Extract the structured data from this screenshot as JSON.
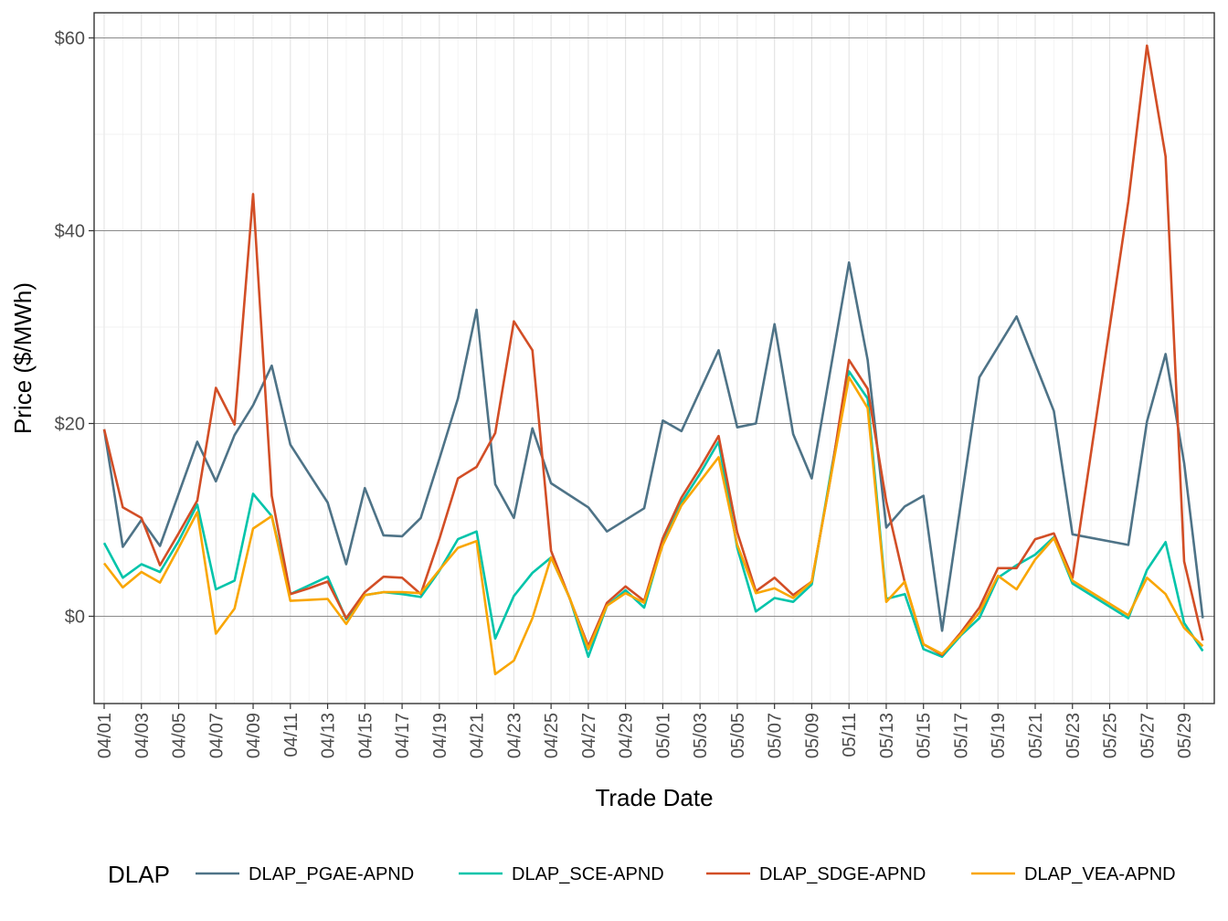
{
  "chart_data": {
    "type": "line",
    "title": "",
    "xlabel": "Trade Date",
    "ylabel": "Price ($/MWh)",
    "ylim": [
      -9,
      62.5
    ],
    "yticks": [
      0,
      20,
      40,
      60
    ],
    "ytick_labels": [
      "$0",
      "$20",
      "$40",
      "$60"
    ],
    "x": [
      "04/01",
      "04/02",
      "04/03",
      "04/04",
      "04/05",
      "04/06",
      "04/07",
      "04/08",
      "04/09",
      "04/10",
      "04/11",
      "04/12",
      "04/13",
      "04/14",
      "04/15",
      "04/16",
      "04/17",
      "04/18",
      "04/19",
      "04/20",
      "04/21",
      "04/22",
      "04/23",
      "04/24",
      "04/25",
      "04/26",
      "04/27",
      "04/28",
      "04/29",
      "04/30",
      "05/01",
      "05/02",
      "05/03",
      "05/04",
      "05/05",
      "05/06",
      "05/07",
      "05/08",
      "05/09",
      "05/10",
      "05/11",
      "05/12",
      "05/13",
      "05/14",
      "05/15",
      "05/16",
      "05/17",
      "05/18",
      "05/19",
      "05/20",
      "05/21",
      "05/22",
      "05/23",
      "05/24",
      "05/25",
      "05/26",
      "05/27",
      "05/28",
      "05/29",
      "05/30"
    ],
    "xtick_labels": [
      "04/01",
      "04/03",
      "04/05",
      "04/07",
      "04/09",
      "04/11",
      "04/13",
      "04/15",
      "04/17",
      "04/19",
      "04/21",
      "04/23",
      "04/25",
      "04/27",
      "04/29",
      "05/01",
      "05/03",
      "05/05",
      "05/07",
      "05/09",
      "05/11",
      "05/13",
      "05/15",
      "05/17",
      "05/19",
      "05/21",
      "05/23",
      "05/25",
      "05/27",
      "05/29"
    ],
    "grid": true,
    "legend": {
      "title": "DLAP",
      "position": "bottom"
    },
    "series": [
      {
        "name": "DLAP_PGAE-APND",
        "color": "#4e7387",
        "values": [
          19.4,
          7.2,
          10.0,
          7.3,
          12.7,
          18.1,
          14.0,
          18.8,
          21.9,
          26.0,
          17.8,
          14.8,
          11.8,
          5.4,
          13.3,
          8.4,
          8.3,
          10.2,
          16.3,
          22.6,
          31.8,
          13.7,
          10.2,
          19.5,
          13.8,
          null,
          11.3,
          8.8,
          null,
          11.2,
          20.3,
          19.2,
          null,
          27.6,
          19.6,
          20.0,
          30.3,
          18.9,
          14.3,
          null,
          36.7,
          26.6,
          9.2,
          11.4,
          12.5,
          -1.5,
          null,
          24.8,
          null,
          31.1,
          null,
          21.3,
          8.5,
          null,
          null,
          7.4,
          20.2,
          27.2,
          15.9,
          -0.2
        ]
      },
      {
        "name": "DLAP_SCE-APND",
        "color": "#00c4aa",
        "values": [
          7.6,
          4.0,
          5.4,
          4.6,
          7.8,
          11.6,
          2.8,
          3.7,
          12.7,
          10.4,
          2.3,
          3.2,
          4.1,
          -0.3,
          2.2,
          2.5,
          2.3,
          2.0,
          4.7,
          8.0,
          8.8,
          -2.3,
          2.1,
          4.5,
          6.1,
          1.9,
          -4.2,
          1.1,
          2.7,
          0.9,
          7.6,
          11.8,
          14.8,
          18.1,
          7.1,
          0.5,
          1.9,
          1.5,
          3.3,
          14.6,
          25.4,
          22.6,
          1.8,
          2.3,
          -3.4,
          -4.2,
          -2.0,
          -0.2,
          4.0,
          5.3,
          6.4,
          8.2,
          3.4,
          null,
          null,
          -0.2,
          4.8,
          7.7,
          -0.7,
          -3.6
        ]
      },
      {
        "name": "DLAP_SDGE-APND",
        "color": "#d24e26",
        "values": [
          19.4,
          11.3,
          10.2,
          5.3,
          8.6,
          12.0,
          23.7,
          19.9,
          43.8,
          12.5,
          2.3,
          2.9,
          3.6,
          -0.2,
          2.5,
          4.1,
          4.0,
          2.3,
          8.0,
          14.3,
          15.5,
          19.0,
          30.6,
          27.6,
          6.8,
          null,
          -3.1,
          1.4,
          3.1,
          1.6,
          8.1,
          12.3,
          15.4,
          18.7,
          8.7,
          2.6,
          4.0,
          2.2,
          3.6,
          14.2,
          26.6,
          23.6,
          11.9,
          3.5,
          -2.9,
          -4.0,
          -1.7,
          0.9,
          5.0,
          5.0,
          8.0,
          8.6,
          4.0,
          null,
          null,
          43.0,
          59.2,
          47.7,
          5.7,
          -2.5
        ]
      },
      {
        "name": "DLAP_VEA-APND",
        "color": "#f9a602",
        "values": [
          5.5,
          3.0,
          4.6,
          3.5,
          7.1,
          10.8,
          -1.8,
          0.8,
          9.1,
          10.4,
          1.6,
          1.7,
          1.8,
          -0.8,
          2.2,
          2.5,
          2.5,
          2.4,
          4.8,
          7.1,
          7.8,
          -6.0,
          -4.6,
          -0.2,
          6.1,
          1.9,
          -3.4,
          1.1,
          2.4,
          1.4,
          7.4,
          11.5,
          14.0,
          16.5,
          7.4,
          2.4,
          2.9,
          1.9,
          3.6,
          14.2,
          24.8,
          21.6,
          1.5,
          3.6,
          -2.9,
          -3.9,
          -1.9,
          0.4,
          4.2,
          2.8,
          5.9,
          8.1,
          3.7,
          null,
          null,
          0.1,
          4.0,
          2.3,
          -1.2,
          -3.1
        ]
      }
    ]
  }
}
